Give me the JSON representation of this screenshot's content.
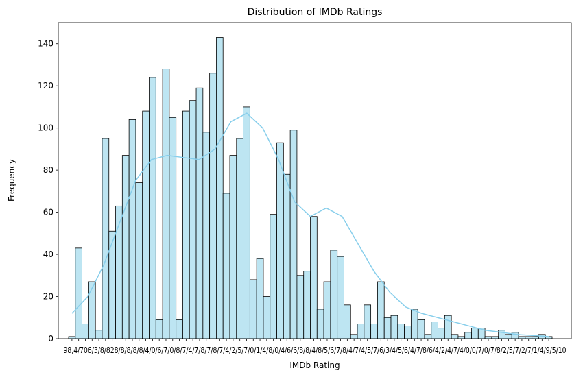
{
  "chart_data": {
    "type": "bar",
    "subtype": "histogram-with-kde",
    "title": "Distribution of IMDb Ratings",
    "xlabel": "IMDb Rating",
    "ylabel": "Frequency",
    "ylim": [
      0,
      150
    ],
    "yticks": [
      0,
      20,
      40,
      60,
      80,
      100,
      120,
      140
    ],
    "x_tick_labels_overlapping": "98,4/706/3/8/828/8/8/8/8/4/0/6/7/0/8/7/4/7/8/7/8/7/4/2/5/7/0/1/4/8/0/4/6/6/8/8/4/8/5/6/7/8/4/7/4/5/7/6/3/4/5/6/4/7/8/6/4/2/4/7/4/0/0/7/0/7/8/2/5/7/2/7/1/4/9/5/10",
    "values": [
      1,
      43,
      7,
      27,
      4,
      95,
      51,
      63,
      87,
      104,
      74,
      108,
      124,
      9,
      128,
      105,
      9,
      108,
      113,
      119,
      98,
      126,
      143,
      69,
      87,
      95,
      110,
      28,
      38,
      20,
      59,
      93,
      78,
      99,
      30,
      32,
      58,
      14,
      27,
      42,
      39,
      16,
      2,
      7,
      16,
      7,
      27,
      10,
      11,
      7,
      6,
      14,
      9,
      2,
      8,
      5,
      11,
      2,
      1,
      3,
      5,
      5,
      1,
      1,
      4,
      2,
      3,
      1,
      1,
      1,
      2,
      1
    ],
    "kde": [
      12,
      20,
      35,
      55,
      75,
      85,
      87,
      86,
      85,
      90,
      103,
      107,
      100,
      85,
      65,
      58,
      62,
      58,
      45,
      32,
      22,
      15,
      12,
      10,
      8,
      6,
      4,
      3,
      2,
      1.5,
      1
    ],
    "colors": {
      "bar_fill": "#bde5f2",
      "bar_edge": "#000000",
      "kde_line": "#87ceeb"
    },
    "grid": false
  }
}
